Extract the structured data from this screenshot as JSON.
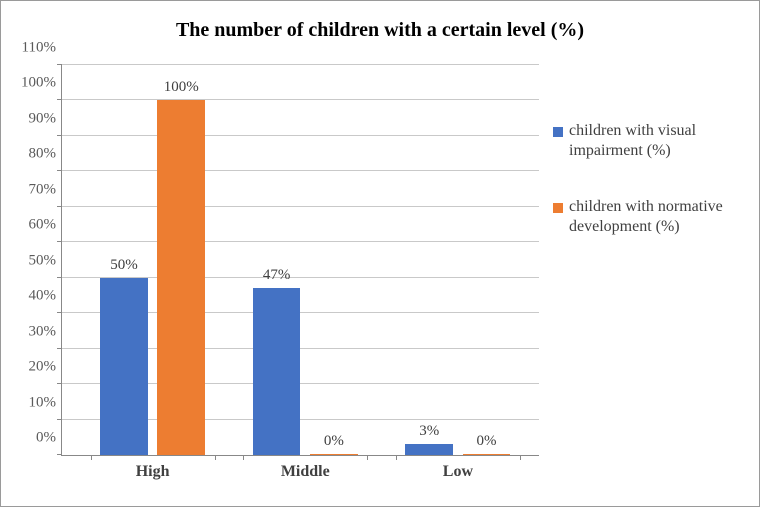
{
  "chart": {
    "type": "bar",
    "title": "The number of children with a certain level (%)",
    "title_fontsize": 20,
    "title_fontweight": "bold",
    "font_family": "Times New Roman",
    "background_color": "#ffffff",
    "border_color": "#9a9a9a",
    "grid_color": "#c9c9c9",
    "axis_color": "#888888",
    "label_color": "#404040",
    "tick_fontsize": 15,
    "xlabel_fontsize": 16,
    "xlabel_fontweight": "bold",
    "datalabel_fontsize": 15,
    "ylim": [
      0,
      110
    ],
    "ytick_step": 10,
    "ytick_suffix": "%",
    "yticks": [
      0,
      10,
      20,
      30,
      40,
      50,
      60,
      70,
      80,
      90,
      100,
      110
    ],
    "categories": [
      "High",
      "Middle",
      "Low"
    ],
    "series": [
      {
        "name": "children with visual impairment (%)",
        "color": "#4472c4",
        "values": [
          50,
          47,
          3
        ],
        "labels": [
          "50%",
          "47%",
          "3%"
        ]
      },
      {
        "name": "children with normative development (%)",
        "color": "#ed7d31",
        "values": [
          100,
          0,
          0
        ],
        "labels": [
          "100%",
          "0%",
          "0%"
        ]
      }
    ],
    "group_width_pct": 26,
    "group_gap_pct": 6,
    "bar_width_pct": 10,
    "bar_gap_pct": 2,
    "group_positions_pct": [
      6,
      38,
      70
    ],
    "legend_position": "right",
    "legend_fontsize": 16,
    "legend_swatch_size": 10
  }
}
